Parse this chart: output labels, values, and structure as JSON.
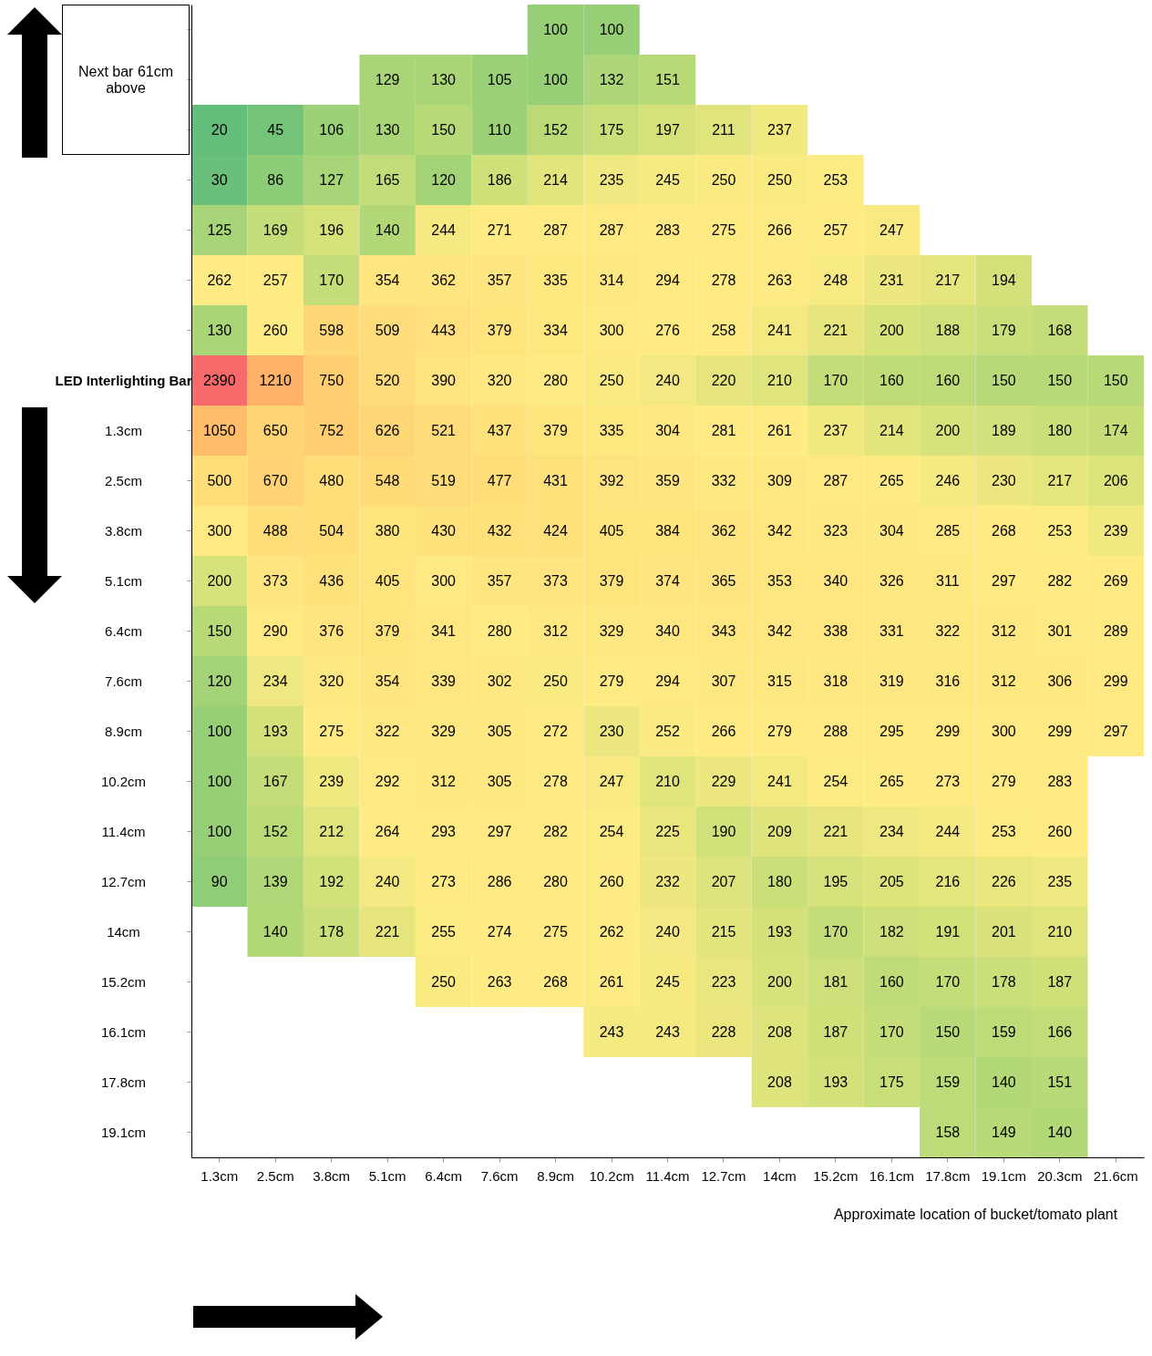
{
  "chart_data": {
    "type": "heatmap",
    "categories": [
      "1.3cm",
      "2.5cm",
      "3.8cm",
      "5.1cm",
      "6.4cm",
      "7.6cm",
      "8.9cm",
      "10.2cm",
      "11.4cm",
      "12.7cm",
      "14cm",
      "15.2cm",
      "16.1cm",
      "17.8cm",
      "19.1cm",
      "20.3cm",
      "21.6cm"
    ],
    "y_categories": [
      null,
      null,
      null,
      null,
      null,
      null,
      null,
      "LED Interlighting Bar",
      "1.3cm",
      "2.5cm",
      "3.8cm",
      "5.1cm",
      "6.4cm",
      "7.6cm",
      "8.9cm",
      "10.2cm",
      "11.4cm",
      "12.7cm",
      "14cm",
      "15.2cm",
      "16.1cm",
      "17.8cm",
      "19.1cm"
    ],
    "cells": [
      [
        null,
        null,
        null,
        null,
        null,
        null,
        100,
        100,
        null,
        null,
        null,
        null,
        null,
        null,
        null,
        null,
        null
      ],
      [
        null,
        null,
        null,
        129,
        130,
        105,
        100,
        132,
        151,
        null,
        null,
        null,
        null,
        null,
        null,
        null,
        null
      ],
      [
        20,
        45,
        106,
        130,
        150,
        110,
        152,
        175,
        197,
        211,
        237,
        null,
        null,
        null,
        null,
        null,
        null
      ],
      [
        30,
        86,
        127,
        165,
        120,
        186,
        214,
        235,
        245,
        250,
        250,
        253,
        null,
        null,
        null,
        null,
        null
      ],
      [
        125,
        169,
        196,
        140,
        244,
        271,
        287,
        287,
        283,
        275,
        266,
        257,
        247,
        null,
        null,
        null,
        null
      ],
      [
        262,
        257,
        170,
        354,
        362,
        357,
        335,
        314,
        294,
        278,
        263,
        248,
        231,
        217,
        194,
        null,
        null
      ],
      [
        130,
        260,
        598,
        509,
        443,
        379,
        334,
        300,
        276,
        258,
        241,
        221,
        200,
        188,
        179,
        168,
        null
      ],
      [
        2390,
        1210,
        750,
        520,
        390,
        320,
        280,
        250,
        240,
        220,
        210,
        170,
        160,
        160,
        150,
        150,
        150
      ],
      [
        1050,
        650,
        752,
        626,
        521,
        437,
        379,
        335,
        304,
        281,
        261,
        237,
        214,
        200,
        189,
        180,
        174
      ],
      [
        500,
        670,
        480,
        548,
        519,
        477,
        431,
        392,
        359,
        332,
        309,
        287,
        265,
        246,
        230,
        217,
        206
      ],
      [
        300,
        488,
        504,
        380,
        430,
        432,
        424,
        405,
        384,
        362,
        342,
        323,
        304,
        285,
        268,
        253,
        239
      ],
      [
        200,
        373,
        436,
        405,
        300,
        357,
        373,
        379,
        374,
        365,
        353,
        340,
        326,
        311,
        297,
        282,
        269
      ],
      [
        150,
        290,
        376,
        379,
        341,
        280,
        312,
        329,
        340,
        343,
        342,
        338,
        331,
        322,
        312,
        301,
        289
      ],
      [
        120,
        234,
        320,
        354,
        339,
        302,
        250,
        279,
        294,
        307,
        315,
        318,
        319,
        316,
        312,
        306,
        299
      ],
      [
        100,
        193,
        275,
        322,
        329,
        305,
        272,
        230,
        252,
        266,
        279,
        288,
        295,
        299,
        300,
        299,
        297
      ],
      [
        100,
        167,
        239,
        292,
        312,
        305,
        278,
        247,
        210,
        229,
        241,
        254,
        265,
        273,
        279,
        283,
        null
      ],
      [
        100,
        152,
        212,
        264,
        293,
        297,
        282,
        254,
        225,
        190,
        209,
        221,
        234,
        244,
        253,
        260,
        null
      ],
      [
        90,
        139,
        192,
        240,
        273,
        286,
        280,
        260,
        232,
        207,
        180,
        195,
        205,
        216,
        226,
        235,
        null
      ],
      [
        null,
        140,
        178,
        221,
        255,
        274,
        275,
        262,
        240,
        215,
        193,
        170,
        182,
        191,
        201,
        210,
        null
      ],
      [
        null,
        null,
        null,
        null,
        250,
        263,
        268,
        261,
        245,
        223,
        200,
        181,
        160,
        170,
        178,
        187,
        null
      ],
      [
        null,
        null,
        null,
        null,
        null,
        null,
        null,
        243,
        243,
        228,
        208,
        187,
        170,
        150,
        159,
        166,
        null
      ],
      [
        null,
        null,
        null,
        null,
        null,
        null,
        null,
        null,
        null,
        null,
        208,
        193,
        175,
        159,
        140,
        151,
        null
      ],
      [
        null,
        null,
        null,
        null,
        null,
        null,
        null,
        null,
        null,
        null,
        null,
        null,
        null,
        158,
        149,
        140,
        null
      ]
    ],
    "data_labels": true,
    "annotations": [
      "Next bar 61cm above",
      "Approximate location of bucket/tomato plant"
    ]
  }
}
